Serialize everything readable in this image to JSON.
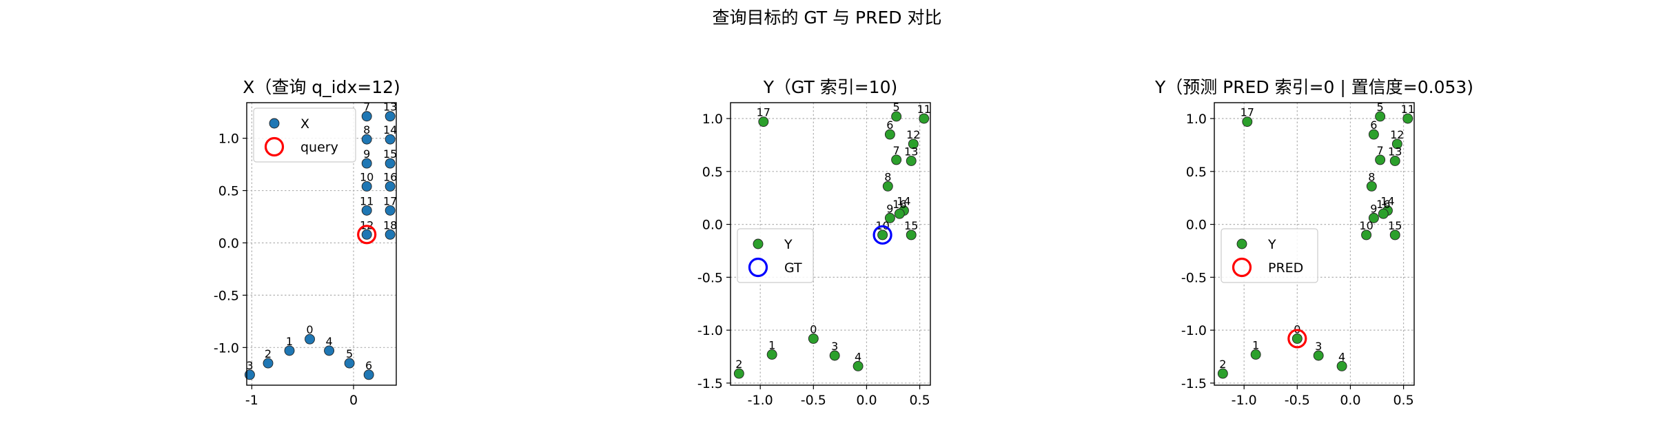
{
  "figure": {
    "suptitle": "查询目标的 GT 与 PRED 对比"
  },
  "chart_data": [
    {
      "type": "scatter",
      "title": "X（查询 q_idx=12)",
      "xlim": [
        -1.05,
        0.42
      ],
      "ylim": [
        -1.36,
        1.34
      ],
      "xticks": [
        -1,
        0
      ],
      "xtick_labels": [
        "-1",
        "0"
      ],
      "yticks": [
        -1.0,
        -0.5,
        0.0,
        0.5,
        1.0
      ],
      "ytick_labels": [
        "-1.0",
        "-0.5",
        "0.0",
        "0.5",
        "1.0"
      ],
      "grid": true,
      "legend_position": "upper-left",
      "point_color": "#1f77b4",
      "series": [
        {
          "name": "X",
          "points": [
            {
              "label": "0",
              "x": -0.43,
              "y": -0.92
            },
            {
              "label": "1",
              "x": -0.63,
              "y": -1.03
            },
            {
              "label": "2",
              "x": -0.84,
              "y": -1.15
            },
            {
              "label": "3",
              "x": -1.02,
              "y": -1.26
            },
            {
              "label": "4",
              "x": -0.24,
              "y": -1.03
            },
            {
              "label": "5",
              "x": -0.04,
              "y": -1.15
            },
            {
              "label": "6",
              "x": 0.15,
              "y": -1.26
            },
            {
              "label": "7",
              "x": 0.13,
              "y": 1.21
            },
            {
              "label": "8",
              "x": 0.13,
              "y": 0.99
            },
            {
              "label": "9",
              "x": 0.13,
              "y": 0.76
            },
            {
              "label": "10",
              "x": 0.13,
              "y": 0.54
            },
            {
              "label": "11",
              "x": 0.13,
              "y": 0.31
            },
            {
              "label": "12",
              "x": 0.13,
              "y": 0.08
            },
            {
              "label": "13",
              "x": 0.36,
              "y": 1.21
            },
            {
              "label": "14",
              "x": 0.36,
              "y": 0.99
            },
            {
              "label": "15",
              "x": 0.36,
              "y": 0.76
            },
            {
              "label": "16",
              "x": 0.36,
              "y": 0.54
            },
            {
              "label": "17",
              "x": 0.36,
              "y": 0.31
            },
            {
              "label": "18",
              "x": 0.36,
              "y": 0.08
            }
          ]
        }
      ],
      "highlight": {
        "name": "query",
        "x": 0.13,
        "y": 0.08,
        "color": "#ff0000"
      }
    },
    {
      "type": "scatter",
      "title": "Y（GT 索引=10)",
      "xlim": [
        -1.28,
        0.6
      ],
      "ylim": [
        -1.52,
        1.15
      ],
      "xticks": [
        -1.0,
        -0.5,
        0.0,
        0.5
      ],
      "xtick_labels": [
        "-1.0",
        "-0.5",
        "0.0",
        "0.5"
      ],
      "yticks": [
        -1.5,
        -1.0,
        -0.5,
        0.0,
        0.5,
        1.0
      ],
      "ytick_labels": [
        "-1.5",
        "-1.0",
        "-0.5",
        "0.0",
        "0.5",
        "1.0"
      ],
      "grid": true,
      "legend_position": "center-left",
      "point_color": "#2ca02c",
      "series": [
        {
          "name": "Y",
          "points": [
            {
              "label": "0",
              "x": -0.5,
              "y": -1.08
            },
            {
              "label": "1",
              "x": -0.89,
              "y": -1.23
            },
            {
              "label": "2",
              "x": -1.2,
              "y": -1.41
            },
            {
              "label": "3",
              "x": -0.3,
              "y": -1.24
            },
            {
              "label": "4",
              "x": -0.08,
              "y": -1.34
            },
            {
              "label": "5",
              "x": 0.28,
              "y": 1.02
            },
            {
              "label": "6",
              "x": 0.22,
              "y": 0.85
            },
            {
              "label": "7",
              "x": 0.28,
              "y": 0.61
            },
            {
              "label": "8",
              "x": 0.2,
              "y": 0.36
            },
            {
              "label": "9",
              "x": 0.22,
              "y": 0.06
            },
            {
              "label": "10",
              "x": 0.15,
              "y": -0.1
            },
            {
              "label": "11",
              "x": 0.54,
              "y": 1.0
            },
            {
              "label": "12",
              "x": 0.44,
              "y": 0.76
            },
            {
              "label": "13",
              "x": 0.42,
              "y": 0.6
            },
            {
              "label": "14",
              "x": 0.35,
              "y": 0.13
            },
            {
              "label": "15",
              "x": 0.42,
              "y": -0.1
            },
            {
              "label": "16",
              "x": 0.31,
              "y": 0.1
            },
            {
              "label": "17",
              "x": -0.97,
              "y": 0.97
            }
          ]
        }
      ],
      "highlight": {
        "name": "GT",
        "x": 0.15,
        "y": -0.1,
        "color": "#0000ff"
      }
    },
    {
      "type": "scatter",
      "title": "Y（预测 PRED 索引=0 | 置信度=0.053)",
      "xlim": [
        -1.28,
        0.6
      ],
      "ylim": [
        -1.52,
        1.15
      ],
      "xticks": [
        -1.0,
        -0.5,
        0.0,
        0.5
      ],
      "xtick_labels": [
        "-1.0",
        "-0.5",
        "0.0",
        "0.5"
      ],
      "yticks": [
        -1.5,
        -1.0,
        -0.5,
        0.0,
        0.5,
        1.0
      ],
      "ytick_labels": [
        "-1.5",
        "-1.0",
        "-0.5",
        "0.0",
        "0.5",
        "1.0"
      ],
      "grid": true,
      "legend_position": "center-left",
      "point_color": "#2ca02c",
      "series": [
        {
          "name": "Y",
          "points": [
            {
              "label": "0",
              "x": -0.5,
              "y": -1.08
            },
            {
              "label": "1",
              "x": -0.89,
              "y": -1.23
            },
            {
              "label": "2",
              "x": -1.2,
              "y": -1.41
            },
            {
              "label": "3",
              "x": -0.3,
              "y": -1.24
            },
            {
              "label": "4",
              "x": -0.08,
              "y": -1.34
            },
            {
              "label": "5",
              "x": 0.28,
              "y": 1.02
            },
            {
              "label": "6",
              "x": 0.22,
              "y": 0.85
            },
            {
              "label": "7",
              "x": 0.28,
              "y": 0.61
            },
            {
              "label": "8",
              "x": 0.2,
              "y": 0.36
            },
            {
              "label": "9",
              "x": 0.22,
              "y": 0.06
            },
            {
              "label": "10",
              "x": 0.15,
              "y": -0.1
            },
            {
              "label": "11",
              "x": 0.54,
              "y": 1.0
            },
            {
              "label": "12",
              "x": 0.44,
              "y": 0.76
            },
            {
              "label": "13",
              "x": 0.42,
              "y": 0.6
            },
            {
              "label": "14",
              "x": 0.35,
              "y": 0.13
            },
            {
              "label": "15",
              "x": 0.42,
              "y": -0.1
            },
            {
              "label": "16",
              "x": 0.31,
              "y": 0.1
            },
            {
              "label": "17",
              "x": -0.97,
              "y": 0.97
            }
          ]
        }
      ],
      "highlight": {
        "name": "PRED",
        "x": -0.5,
        "y": -1.08,
        "color": "#ff0000"
      }
    }
  ]
}
